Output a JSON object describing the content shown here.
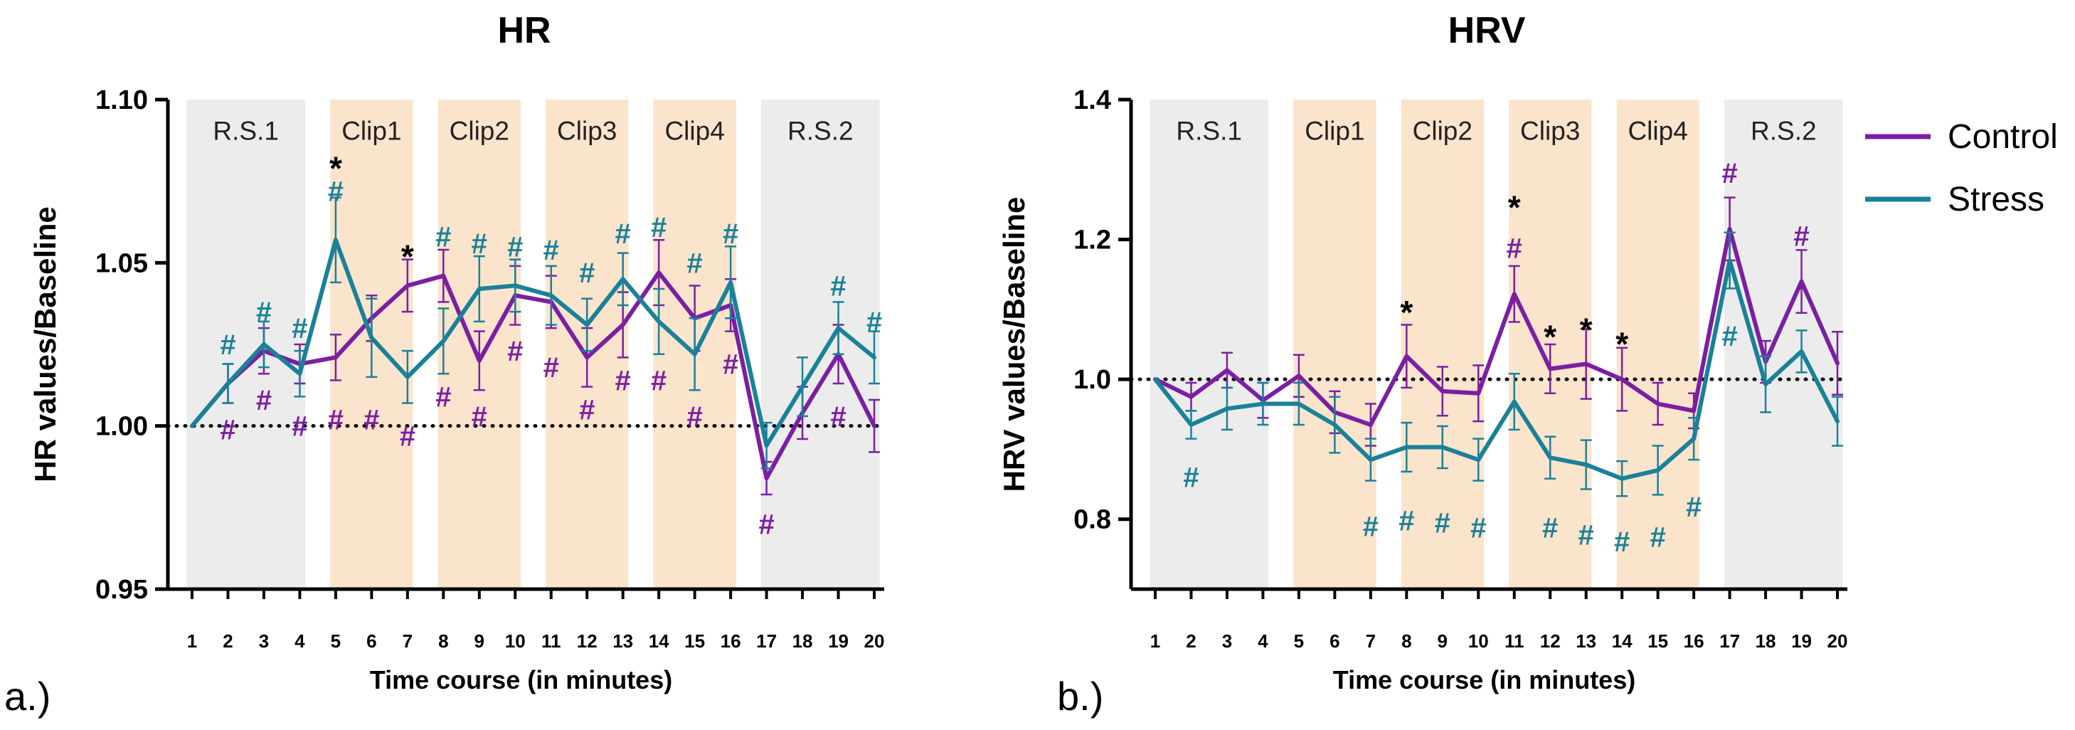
{
  "colors": {
    "control": "#7b1fa2",
    "stress": "#1a8199",
    "rest_band": "#ececec",
    "clip_band": "#fbe4cc"
  },
  "legend": {
    "control": "Control",
    "stress": "Stress"
  },
  "chart_data": [
    {
      "id": "a",
      "type": "line",
      "title": "HR",
      "panel_label": "a.)",
      "xlabel": "Time course (in minutes)",
      "ylabel": "HR values/Baseline",
      "x": [
        1,
        2,
        3,
        4,
        5,
        6,
        7,
        8,
        9,
        10,
        11,
        12,
        13,
        14,
        15,
        16,
        17,
        18,
        19,
        20
      ],
      "ylim": [
        0.95,
        1.1
      ],
      "yticks": [
        0.95,
        1.0,
        1.05,
        1.1
      ],
      "ytick_labels": [
        "0.95",
        "1.00",
        "1.05",
        "1.10"
      ],
      "baseline": 1.0,
      "phases": [
        {
          "label": "R.S.1",
          "start": 1,
          "end": 4,
          "kind": "rest"
        },
        {
          "label": "Clip1",
          "start": 5,
          "end": 7,
          "kind": "clip"
        },
        {
          "label": "Clip2",
          "start": 8,
          "end": 10,
          "kind": "clip"
        },
        {
          "label": "Clip3",
          "start": 11,
          "end": 13,
          "kind": "clip"
        },
        {
          "label": "Clip4",
          "start": 14,
          "end": 16,
          "kind": "clip"
        },
        {
          "label": "R.S.2",
          "start": 17,
          "end": 20,
          "kind": "rest"
        }
      ],
      "series": [
        {
          "name": "Control",
          "key": "control",
          "values": [
            1.0,
            1.013,
            1.023,
            1.019,
            1.021,
            1.033,
            1.043,
            1.046,
            1.02,
            1.04,
            1.038,
            1.021,
            1.031,
            1.047,
            1.033,
            1.037,
            0.984,
            1.004,
            1.022,
            1.0
          ],
          "errors": [
            0.0,
            0.006,
            0.007,
            0.006,
            0.007,
            0.007,
            0.008,
            0.008,
            0.009,
            0.009,
            0.008,
            0.009,
            0.01,
            0.01,
            0.01,
            0.008,
            0.005,
            0.008,
            0.009,
            0.008
          ],
          "marks": [
            {
              "x": 2,
              "y": 0.999,
              "t": "#"
            },
            {
              "x": 3,
              "y": 1.008,
              "t": "#"
            },
            {
              "x": 4,
              "y": 1.0,
              "t": "#"
            },
            {
              "x": 5,
              "y": 1.002,
              "t": "#"
            },
            {
              "x": 6,
              "y": 1.002,
              "t": "#"
            },
            {
              "x": 7,
              "y": 0.997,
              "t": "#"
            },
            {
              "x": 8,
              "y": 1.009,
              "t": "#"
            },
            {
              "x": 9,
              "y": 1.003,
              "t": "#"
            },
            {
              "x": 10,
              "y": 1.023,
              "t": "#"
            },
            {
              "x": 11,
              "y": 1.018,
              "t": "#"
            },
            {
              "x": 12,
              "y": 1.005,
              "t": "#"
            },
            {
              "x": 13,
              "y": 1.014,
              "t": "#"
            },
            {
              "x": 14,
              "y": 1.014,
              "t": "#"
            },
            {
              "x": 15,
              "y": 1.003,
              "t": "#"
            },
            {
              "x": 16,
              "y": 1.019,
              "t": "#"
            },
            {
              "x": 17,
              "y": 0.97,
              "t": "#"
            },
            {
              "x": 19,
              "y": 1.003,
              "t": "#"
            }
          ]
        },
        {
          "name": "Stress",
          "key": "stress",
          "values": [
            1.0,
            1.013,
            1.025,
            1.016,
            1.057,
            1.027,
            1.015,
            1.026,
            1.042,
            1.043,
            1.04,
            1.031,
            1.045,
            1.032,
            1.022,
            1.044,
            0.994,
            1.012,
            1.03,
            1.021
          ],
          "errors": [
            0.0,
            0.006,
            0.007,
            0.007,
            0.013,
            0.012,
            0.008,
            0.01,
            0.01,
            0.008,
            0.009,
            0.008,
            0.008,
            0.01,
            0.011,
            0.011,
            0.007,
            0.009,
            0.008,
            0.008
          ],
          "marks": [
            {
              "x": 2,
              "y": 1.025,
              "t": "#"
            },
            {
              "x": 3,
              "y": 1.035,
              "t": "#"
            },
            {
              "x": 4,
              "y": 1.03,
              "t": "#"
            },
            {
              "x": 5,
              "y": 1.072,
              "t": "#"
            },
            {
              "x": 8,
              "y": 1.058,
              "t": "#"
            },
            {
              "x": 9,
              "y": 1.056,
              "t": "#"
            },
            {
              "x": 10,
              "y": 1.055,
              "t": "#"
            },
            {
              "x": 11,
              "y": 1.054,
              "t": "#"
            },
            {
              "x": 12,
              "y": 1.047,
              "t": "#"
            },
            {
              "x": 13,
              "y": 1.059,
              "t": "#"
            },
            {
              "x": 14,
              "y": 1.061,
              "t": "#"
            },
            {
              "x": 15,
              "y": 1.05,
              "t": "#"
            },
            {
              "x": 16,
              "y": 1.059,
              "t": "#"
            },
            {
              "x": 19,
              "y": 1.043,
              "t": "#"
            },
            {
              "x": 20,
              "y": 1.032,
              "t": "#"
            }
          ]
        }
      ],
      "annotations": [
        {
          "x": 5,
          "y": 1.082,
          "text": "*"
        },
        {
          "x": 7,
          "y": 1.055,
          "text": "*"
        }
      ]
    },
    {
      "id": "b",
      "type": "line",
      "title": "HRV",
      "panel_label": "b.)",
      "xlabel": "Time course (in minutes)",
      "ylabel": "HRV values/Baseline",
      "x": [
        1,
        2,
        3,
        4,
        5,
        6,
        7,
        8,
        9,
        10,
        11,
        12,
        13,
        14,
        15,
        16,
        17,
        18,
        19,
        20
      ],
      "ylim": [
        0.7,
        1.4
      ],
      "yticks": [
        0.8,
        1.0,
        1.2,
        1.4
      ],
      "ytick_labels": [
        "0.8",
        "1.0",
        "1.2",
        "1.4"
      ],
      "baseline": 1.0,
      "phases": [
        {
          "label": "R.S.1",
          "start": 1,
          "end": 4,
          "kind": "rest"
        },
        {
          "label": "Clip1",
          "start": 5,
          "end": 7,
          "kind": "clip"
        },
        {
          "label": "Clip2",
          "start": 8,
          "end": 10,
          "kind": "clip"
        },
        {
          "label": "Clip3",
          "start": 11,
          "end": 13,
          "kind": "clip"
        },
        {
          "label": "Clip4",
          "start": 14,
          "end": 16,
          "kind": "clip"
        },
        {
          "label": "R.S.2",
          "start": 17,
          "end": 20,
          "kind": "rest"
        }
      ],
      "series": [
        {
          "name": "Control",
          "key": "control",
          "values": [
            1.0,
            0.975,
            1.013,
            0.97,
            1.005,
            0.953,
            0.935,
            1.033,
            0.983,
            0.98,
            1.122,
            1.015,
            1.022,
            1.0,
            0.965,
            0.955,
            1.215,
            1.025,
            1.14,
            1.023
          ],
          "errors": [
            0.0,
            0.02,
            0.025,
            0.025,
            0.03,
            0.03,
            0.03,
            0.045,
            0.035,
            0.04,
            0.04,
            0.035,
            0.05,
            0.045,
            0.03,
            0.025,
            0.045,
            0.03,
            0.045,
            0.045
          ],
          "marks": [
            {
              "x": 11,
              "y": 1.188,
              "t": "#"
            },
            {
              "x": 17,
              "y": 1.295,
              "t": "#"
            },
            {
              "x": 19,
              "y": 1.205,
              "t": "#"
            }
          ]
        },
        {
          "name": "Stress",
          "key": "stress",
          "values": [
            1.0,
            0.935,
            0.958,
            0.965,
            0.965,
            0.935,
            0.885,
            0.903,
            0.903,
            0.885,
            0.968,
            0.888,
            0.878,
            0.858,
            0.87,
            0.915,
            1.17,
            0.993,
            1.04,
            0.94
          ],
          "errors": [
            0.0,
            0.02,
            0.03,
            0.03,
            0.03,
            0.04,
            0.03,
            0.035,
            0.03,
            0.03,
            0.04,
            0.03,
            0.035,
            0.025,
            0.035,
            0.03,
            0.04,
            0.04,
            0.03,
            0.035
          ],
          "marks": [
            {
              "x": 2,
              "y": 0.86,
              "t": "#"
            },
            {
              "x": 7,
              "y": 0.79,
              "t": "#"
            },
            {
              "x": 8,
              "y": 0.798,
              "t": "#"
            },
            {
              "x": 9,
              "y": 0.795,
              "t": "#"
            },
            {
              "x": 10,
              "y": 0.788,
              "t": "#"
            },
            {
              "x": 12,
              "y": 0.788,
              "t": "#"
            },
            {
              "x": 13,
              "y": 0.778,
              "t": "#"
            },
            {
              "x": 14,
              "y": 0.768,
              "t": "#"
            },
            {
              "x": 15,
              "y": 0.775,
              "t": "#"
            },
            {
              "x": 16,
              "y": 0.818,
              "t": "#"
            },
            {
              "x": 17,
              "y": 1.062,
              "t": "#"
            }
          ]
        }
      ],
      "annotations": [
        {
          "x": 8,
          "y": 1.11,
          "text": "*"
        },
        {
          "x": 11,
          "y": 1.26,
          "text": "*"
        },
        {
          "x": 12,
          "y": 1.075,
          "text": "*"
        },
        {
          "x": 13,
          "y": 1.085,
          "text": "*"
        },
        {
          "x": 14,
          "y": 1.065,
          "text": "*"
        }
      ]
    }
  ]
}
